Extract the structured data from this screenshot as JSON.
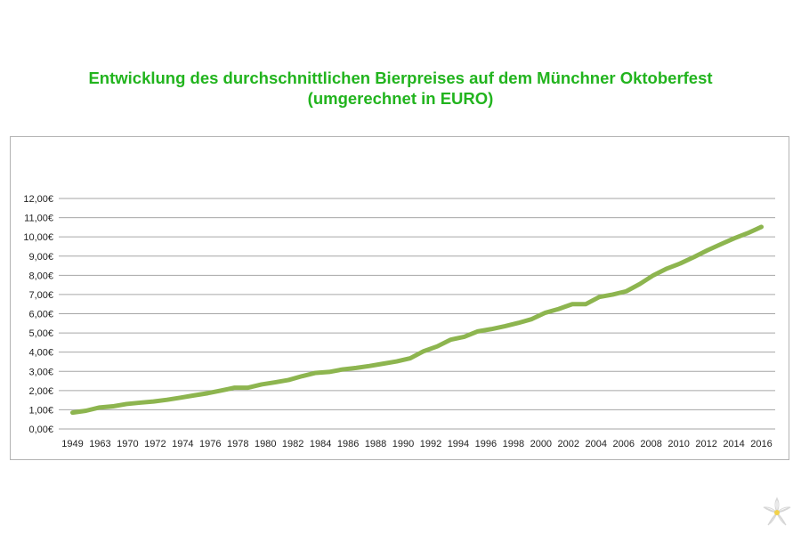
{
  "title": {
    "line1": "Entwicklung des durchschnittlichen Bierpreises auf dem Münchner Oktoberfest",
    "line2": "(umgerechnet in EURO)"
  },
  "colors": {
    "title": "#22b41e",
    "line": "#8db54f",
    "grid": "#a6a6a6"
  },
  "icons": {
    "corner": "edelweiss-icon"
  },
  "chart_data": {
    "type": "line",
    "title": "Entwicklung des durchschnittlichen Bierpreises auf dem Münchner Oktoberfest (umgerechnet in EURO)",
    "xlabel": "",
    "ylabel": "",
    "ylim": [
      0,
      12
    ],
    "grid": true,
    "legend": "none",
    "y_tick_labels": [
      "0,00€",
      "1,00€",
      "2,00€",
      "3,00€",
      "4,00€",
      "5,00€",
      "6,00€",
      "7,00€",
      "8,00€",
      "9,00€",
      "10,00€",
      "11,00€",
      "12,00€"
    ],
    "x_tick_labels": [
      "1949",
      "1963",
      "1970",
      "1972",
      "1974",
      "1976",
      "1978",
      "1980",
      "1982",
      "1984",
      "1986",
      "1988",
      "1990",
      "1992",
      "1994",
      "1996",
      "1998",
      "2000",
      "2002",
      "2004",
      "2006",
      "2008",
      "2010",
      "2012",
      "2014",
      "2016"
    ],
    "series": [
      {
        "values": [
          0.85,
          0.95,
          1.12,
          1.18,
          1.3,
          1.37,
          1.43,
          1.52,
          1.63,
          1.75,
          1.86,
          2.0,
          2.15,
          2.15,
          2.32,
          2.43,
          2.55,
          2.75,
          2.92,
          2.97,
          3.1,
          3.18,
          3.28,
          3.4,
          3.52,
          3.68,
          4.05,
          4.3,
          4.65,
          4.8,
          5.08,
          5.2,
          5.35,
          5.52,
          5.72,
          6.05,
          6.25,
          6.5,
          6.5,
          6.87,
          7.0,
          7.17,
          7.55,
          8.0,
          8.35,
          8.62,
          8.95,
          9.3,
          9.62,
          9.93,
          10.2,
          10.52
        ]
      }
    ]
  }
}
